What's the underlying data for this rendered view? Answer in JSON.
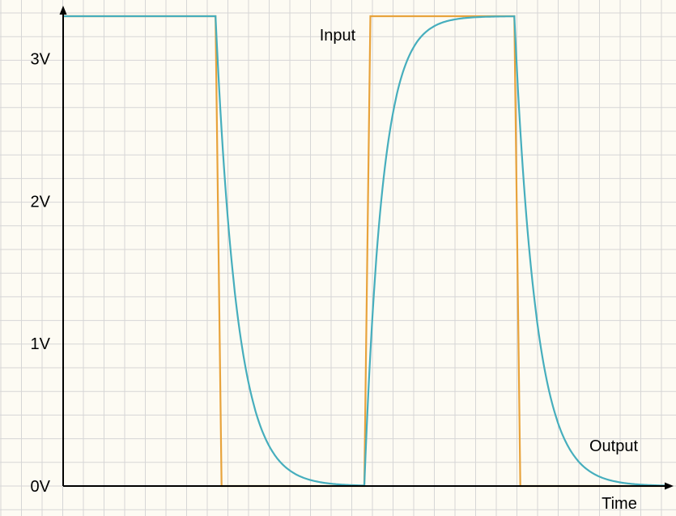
{
  "chart_data": {
    "type": "line",
    "xlabel": "Time",
    "ylabel": "",
    "ylim": [
      0,
      3.3
    ],
    "y_ticks": [
      {
        "value": 0,
        "label": "0V"
      },
      {
        "value": 1,
        "label": "1V"
      },
      {
        "value": 2,
        "label": "2V"
      },
      {
        "value": 3,
        "label": "3V"
      }
    ],
    "grid": true,
    "x_range": [
      0,
      100
    ],
    "series": [
      {
        "name": "Input",
        "color": "#e8a33c",
        "points": [
          [
            0,
            3.3
          ],
          [
            25.2,
            3.3
          ],
          [
            26.2,
            0
          ],
          [
            49.8,
            0
          ],
          [
            50.8,
            3.3
          ],
          [
            74.6,
            3.3
          ],
          [
            75.6,
            0
          ],
          [
            100,
            0
          ]
        ]
      },
      {
        "name": "Output",
        "color": "#46aebd",
        "type": "rc",
        "high": 3.3,
        "low": 0,
        "edges": [
          25.2,
          49.8,
          74.6
        ],
        "tau_fall": 3.6,
        "tau_rise": 3.0,
        "end": 100
      }
    ]
  }
}
